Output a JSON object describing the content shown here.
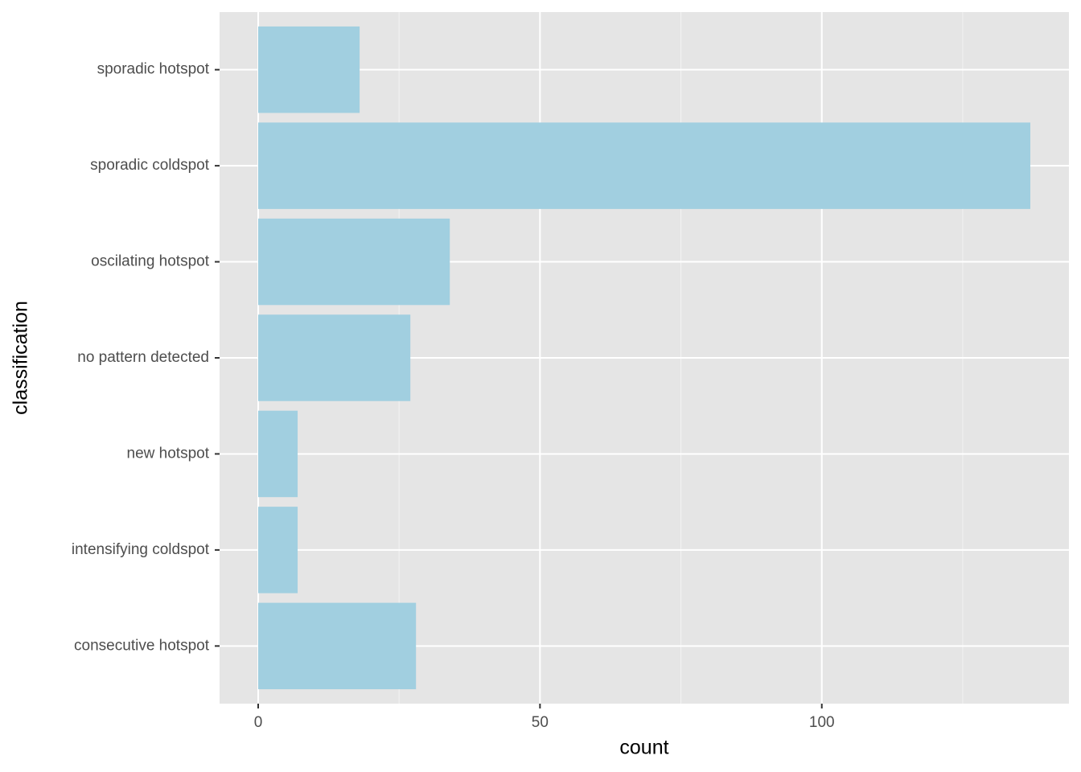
{
  "chart_data": {
    "type": "bar",
    "orientation": "horizontal",
    "x_label": "count",
    "y_label": "classification",
    "categories": [
      "sporadic hotspot",
      "sporadic coldspot",
      "oscilating hotspot",
      "no pattern detected",
      "new hotspot",
      "intensifying coldspot",
      "consecutive hotspot"
    ],
    "values": [
      18,
      137,
      34,
      27,
      7,
      7,
      28
    ],
    "color": "#a1cfe0",
    "xlim": [
      -6.85,
      143.85
    ],
    "xticks": [
      0,
      50,
      100
    ],
    "x_minor_ticks": [
      25,
      75,
      125
    ],
    "grid": true
  }
}
